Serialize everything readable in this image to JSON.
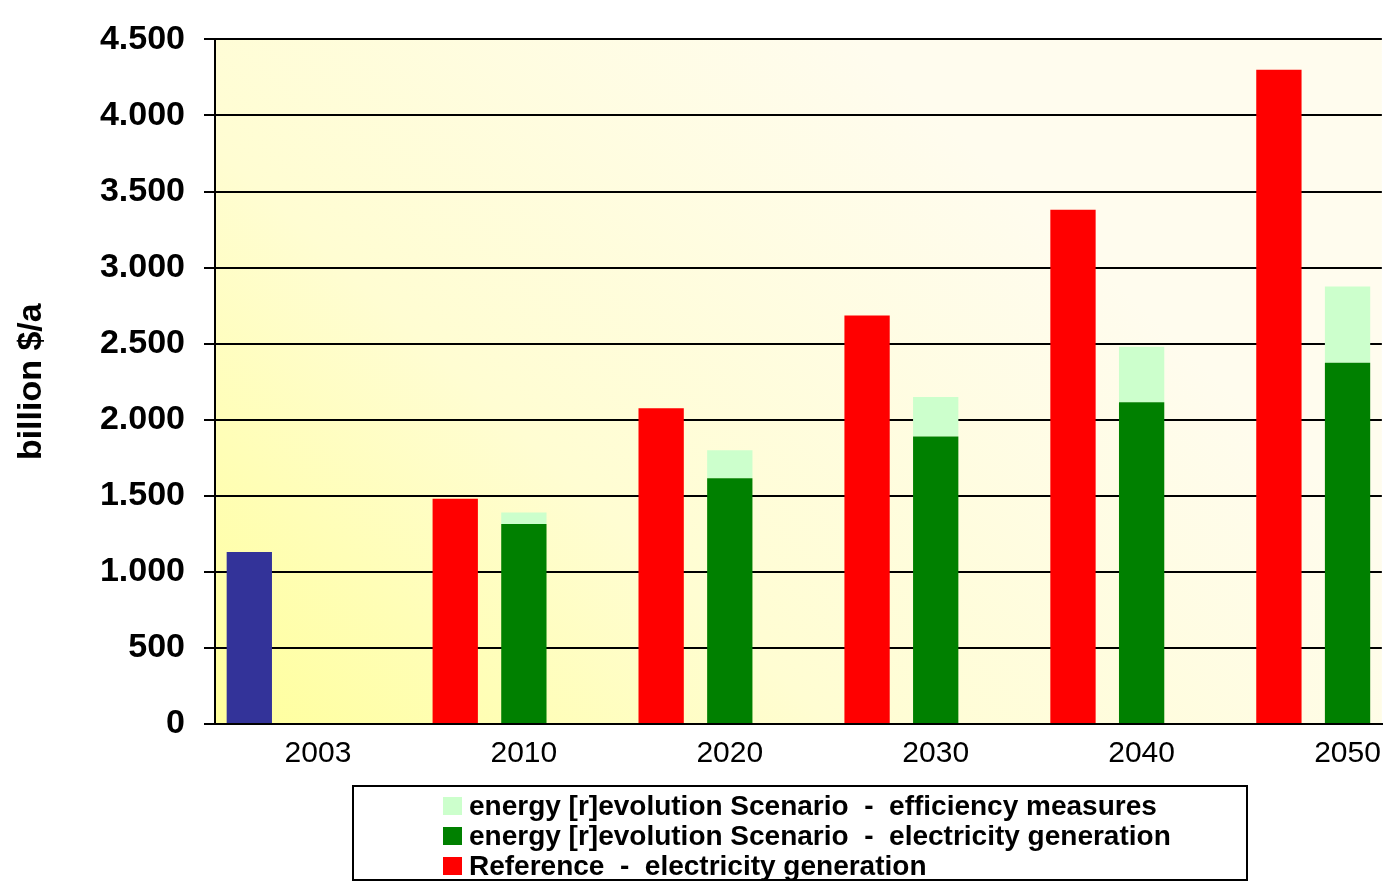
{
  "chart_data": {
    "type": "bar",
    "categories": [
      null,
      "2003",
      null,
      null,
      "2010",
      null,
      null,
      "2020",
      null,
      null,
      "2030",
      null,
      null,
      "2040",
      null,
      null,
      "2050"
    ],
    "ylabel": "billion $/a",
    "stacked": true,
    "series": [
      {
        "color": "#333399",
        "values": [
          1130,
          null,
          null,
          null,
          null,
          null,
          null,
          null,
          null,
          null,
          null,
          null,
          null,
          null,
          null,
          null,
          null
        ]
      },
      {
        "name": "Reference  -  electricity generation",
        "color": "#ff0000",
        "values": [
          null,
          null,
          null,
          1480,
          null,
          null,
          2075,
          null,
          null,
          2685,
          null,
          null,
          3380,
          null,
          null,
          4300,
          null
        ]
      },
      {
        "name": "energy [r]evolution Scenario  -  electricity generation",
        "color": "#008000",
        "values": [
          null,
          null,
          null,
          null,
          1315,
          null,
          null,
          1615,
          null,
          null,
          1890,
          null,
          null,
          2115,
          null,
          null,
          2375
        ]
      },
      {
        "name": "energy [r]evolution Scenario  -  efficiency measures",
        "color": "#ccffcc",
        "values": [
          null,
          null,
          null,
          null,
          75,
          null,
          null,
          185,
          null,
          null,
          260,
          null,
          null,
          365,
          null,
          null,
          500
        ]
      }
    ],
    "ylim": [
      0,
      4500
    ],
    "yticks": [
      0,
      500,
      {
        "value": 1000,
        "label": "1.000"
      },
      {
        "value": 1500,
        "label": "1.500"
      },
      {
        "value": 2000,
        "label": "2.000"
      },
      {
        "value": 2500,
        "label": "2.500"
      },
      {
        "value": 3000,
        "label": "3.000"
      },
      {
        "value": 3500,
        "label": "3.500"
      },
      {
        "value": 4000,
        "label": "4.000"
      },
      {
        "value": 4500,
        "label": "4.500"
      }
    ],
    "grid": "y",
    "legend": "bottom"
  }
}
